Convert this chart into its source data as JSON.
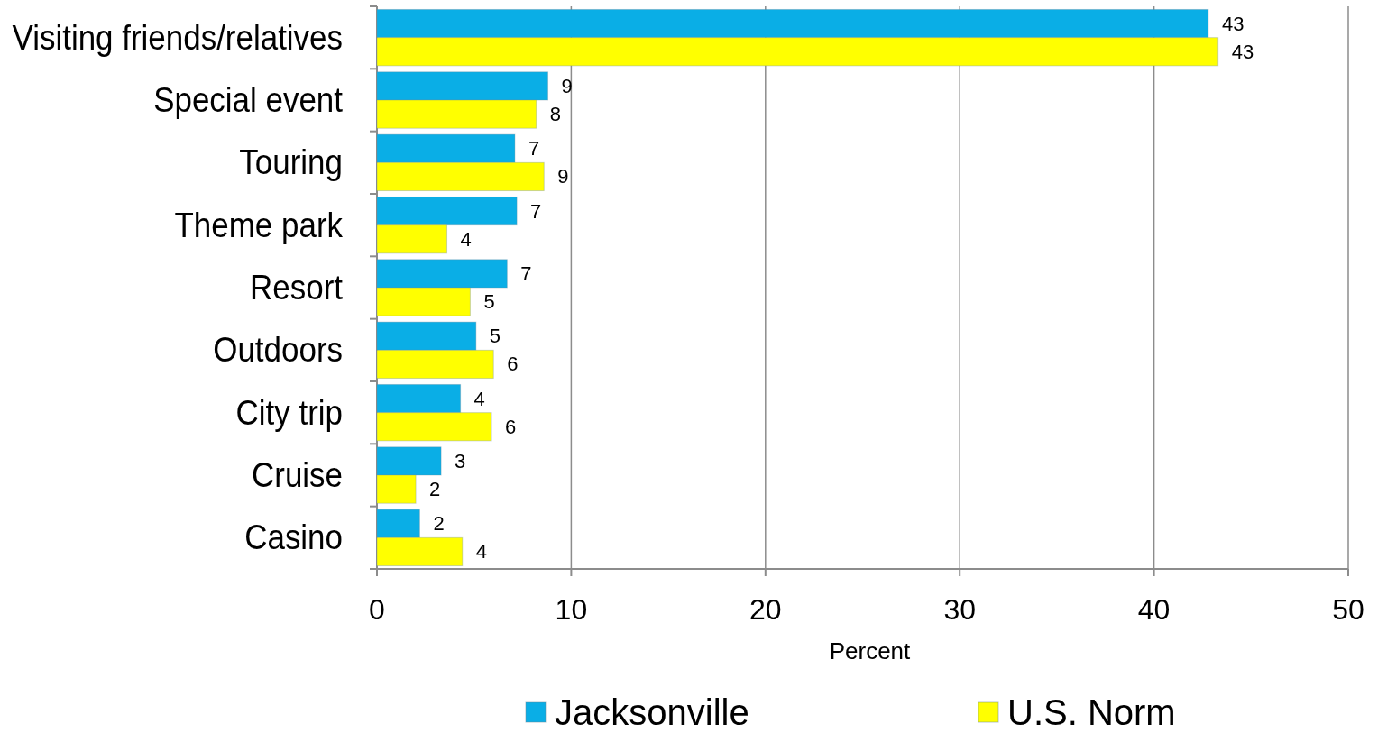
{
  "chart_data": {
    "type": "bar",
    "orientation": "horizontal",
    "xlabel": "Percent",
    "categories": [
      "Visiting friends/relatives",
      "Special event",
      "Touring",
      "Theme park",
      "Resort",
      "Outdoors",
      "City trip",
      "Cruise",
      "Casino"
    ],
    "series": [
      {
        "name": "Jacksonville",
        "color": "#0aaee6",
        "values": [
          42.8,
          8.8,
          7.1,
          7.2,
          6.7,
          5.1,
          4.3,
          3.3,
          2.2
        ],
        "value_labels": [
          "43",
          "9",
          "7",
          "7",
          "7",
          "5",
          "4",
          "3",
          "2"
        ]
      },
      {
        "name": "U.S. Norm",
        "color": "#ffff00",
        "values": [
          43.3,
          8.2,
          8.6,
          3.6,
          4.8,
          6.0,
          5.9,
          2.0,
          4.4
        ],
        "value_labels": [
          "43",
          "8",
          "9",
          "4",
          "5",
          "6",
          "6",
          "2",
          "4"
        ]
      }
    ],
    "xlim": [
      0,
      50
    ],
    "xticks": [
      0,
      10,
      20,
      30,
      40,
      50
    ],
    "grid": "x",
    "legend": "bottom"
  }
}
